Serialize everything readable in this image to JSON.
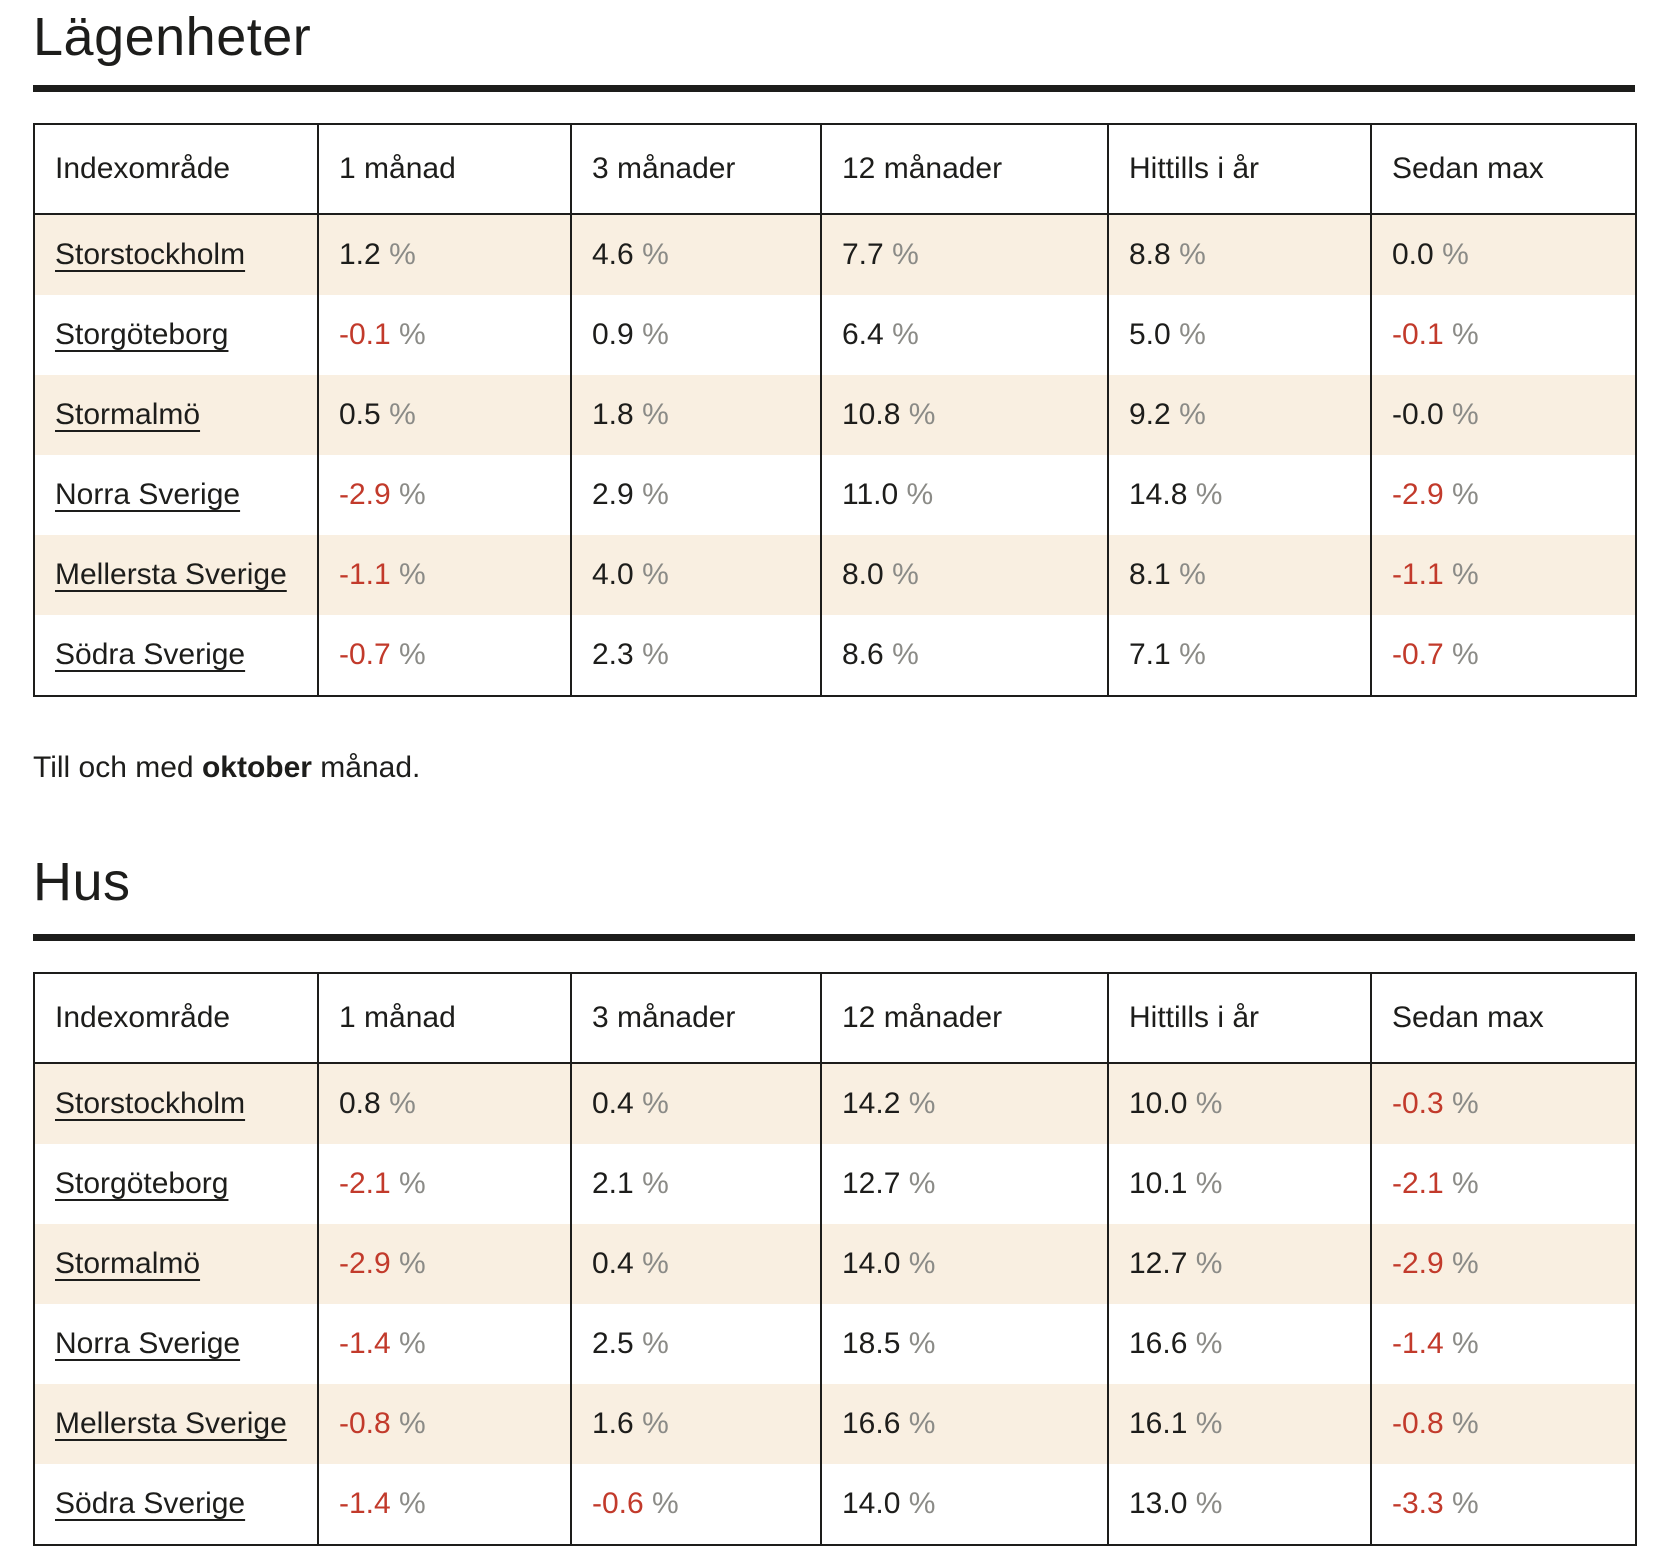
{
  "percent_sign": "%",
  "note": {
    "prefix": "Till och med ",
    "month": "oktober",
    "suffix": " månad."
  },
  "colors": {
    "text": "#1d1d1b",
    "negative_red": "#c23a2b",
    "percent_gray": "#8b8b87",
    "stripe_cream": "#f9efe1",
    "rule_black": "#1d1d1b"
  },
  "sections": [
    {
      "id": "lagenheter",
      "title": "Lägenheter",
      "table": {
        "columns": [
          "Indexområde",
          "1 månad",
          "3 månader",
          "12 månader",
          "Hittills i år",
          "Sedan max"
        ],
        "rows": [
          {
            "label": "Storstockholm",
            "cells": [
              {
                "v": "1.2",
                "red": false
              },
              {
                "v": "4.6",
                "red": false
              },
              {
                "v": "7.7",
                "red": false
              },
              {
                "v": "8.8",
                "red": false
              },
              {
                "v": "0.0",
                "red": false
              }
            ]
          },
          {
            "label": "Storgöteborg",
            "cells": [
              {
                "v": "-0.1",
                "red": true
              },
              {
                "v": "0.9",
                "red": false
              },
              {
                "v": "6.4",
                "red": false
              },
              {
                "v": "5.0",
                "red": false
              },
              {
                "v": "-0.1",
                "red": true
              }
            ]
          },
          {
            "label": "Stormalmö",
            "cells": [
              {
                "v": "0.5",
                "red": false
              },
              {
                "v": "1.8",
                "red": false
              },
              {
                "v": "10.8",
                "red": false
              },
              {
                "v": "9.2",
                "red": false
              },
              {
                "v": "-0.0",
                "red": false
              }
            ]
          },
          {
            "label": "Norra Sverige",
            "cells": [
              {
                "v": "-2.9",
                "red": true
              },
              {
                "v": "2.9",
                "red": false
              },
              {
                "v": "11.0",
                "red": false
              },
              {
                "v": "14.8",
                "red": false
              },
              {
                "v": "-2.9",
                "red": true
              }
            ]
          },
          {
            "label": "Mellersta Sverige",
            "cells": [
              {
                "v": "-1.1",
                "red": true
              },
              {
                "v": "4.0",
                "red": false
              },
              {
                "v": "8.0",
                "red": false
              },
              {
                "v": "8.1",
                "red": false
              },
              {
                "v": "-1.1",
                "red": true
              }
            ]
          },
          {
            "label": "Södra Sverige",
            "cells": [
              {
                "v": "-0.7",
                "red": true
              },
              {
                "v": "2.3",
                "red": false
              },
              {
                "v": "8.6",
                "red": false
              },
              {
                "v": "7.1",
                "red": false
              },
              {
                "v": "-0.7",
                "red": true
              }
            ]
          }
        ]
      }
    },
    {
      "id": "hus",
      "title": "Hus",
      "table": {
        "columns": [
          "Indexområde",
          "1 månad",
          "3 månader",
          "12 månader",
          "Hittills i år",
          "Sedan max"
        ],
        "rows": [
          {
            "label": "Storstockholm",
            "cells": [
              {
                "v": "0.8",
                "red": false
              },
              {
                "v": "0.4",
                "red": false
              },
              {
                "v": "14.2",
                "red": false
              },
              {
                "v": "10.0",
                "red": false
              },
              {
                "v": "-0.3",
                "red": true
              }
            ]
          },
          {
            "label": "Storgöteborg",
            "cells": [
              {
                "v": "-2.1",
                "red": true
              },
              {
                "v": "2.1",
                "red": false
              },
              {
                "v": "12.7",
                "red": false
              },
              {
                "v": "10.1",
                "red": false
              },
              {
                "v": "-2.1",
                "red": true
              }
            ]
          },
          {
            "label": "Stormalmö",
            "cells": [
              {
                "v": "-2.9",
                "red": true
              },
              {
                "v": "0.4",
                "red": false
              },
              {
                "v": "14.0",
                "red": false
              },
              {
                "v": "12.7",
                "red": false
              },
              {
                "v": "-2.9",
                "red": true
              }
            ]
          },
          {
            "label": "Norra Sverige",
            "cells": [
              {
                "v": "-1.4",
                "red": true
              },
              {
                "v": "2.5",
                "red": false
              },
              {
                "v": "18.5",
                "red": false
              },
              {
                "v": "16.6",
                "red": false
              },
              {
                "v": "-1.4",
                "red": true
              }
            ]
          },
          {
            "label": "Mellersta Sverige",
            "cells": [
              {
                "v": "-0.8",
                "red": true
              },
              {
                "v": "1.6",
                "red": false
              },
              {
                "v": "16.6",
                "red": false
              },
              {
                "v": "16.1",
                "red": false
              },
              {
                "v": "-0.8",
                "red": true
              }
            ]
          },
          {
            "label": "Södra Sverige",
            "cells": [
              {
                "v": "-1.4",
                "red": true
              },
              {
                "v": "-0.6",
                "red": true
              },
              {
                "v": "14.0",
                "red": false
              },
              {
                "v": "13.0",
                "red": false
              },
              {
                "v": "-3.3",
                "red": true
              }
            ]
          }
        ]
      }
    }
  ]
}
